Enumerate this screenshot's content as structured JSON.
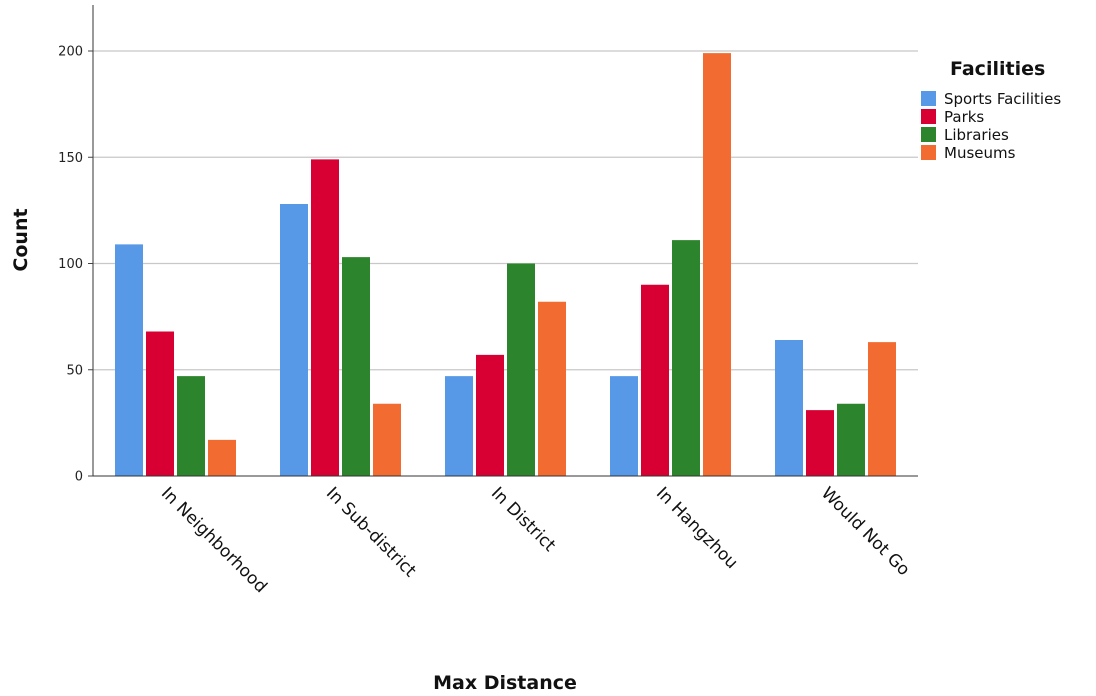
{
  "chart_data": {
    "type": "bar",
    "title": "",
    "xlabel": "Max Distance",
    "ylabel": "Count",
    "ylim": [
      0,
      200
    ],
    "yticks": [
      0,
      50,
      100,
      150,
      200
    ],
    "grid": true,
    "legend_title": "Facilities",
    "legend_position": "right",
    "categories": [
      "In Neighborhood",
      "In Sub-district",
      "In District",
      "In Hangzhou",
      "Would Not Go"
    ],
    "series": [
      {
        "name": "Sports Facilities",
        "color": "#5799e6",
        "values": [
          109,
          128,
          47,
          47,
          64
        ]
      },
      {
        "name": "Parks",
        "color": "#d80033",
        "values": [
          68,
          149,
          57,
          90,
          31
        ]
      },
      {
        "name": "Libraries",
        "color": "#2c842c",
        "values": [
          47,
          103,
          100,
          111,
          34
        ]
      },
      {
        "name": "Museums",
        "color": "#f26b30",
        "values": [
          17,
          34,
          82,
          199,
          63
        ]
      }
    ]
  }
}
